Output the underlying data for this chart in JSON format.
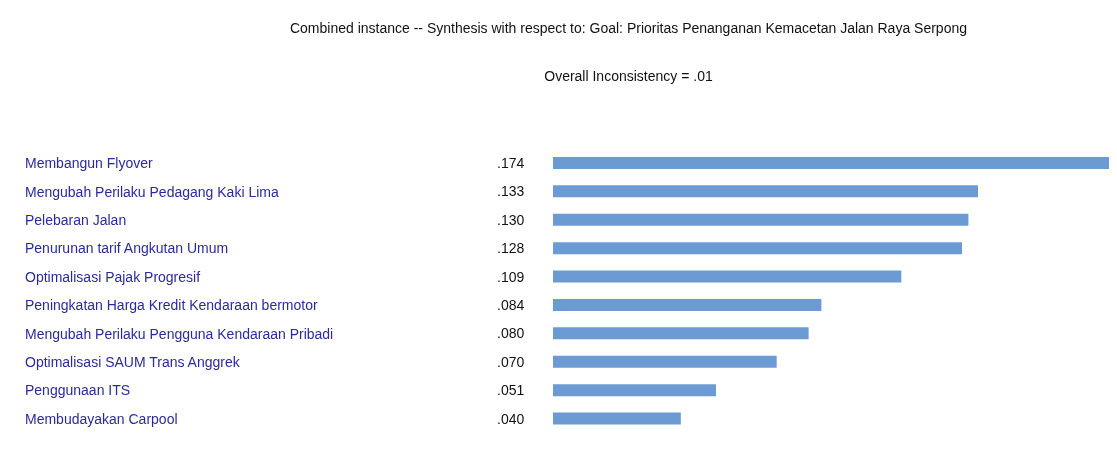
{
  "chart_data": {
    "type": "bar",
    "orientation": "horizontal",
    "title": "Combined instance -- Synthesis with respect to: Goal: Prioritas Penanganan Kemacetan Jalan Raya Serpong",
    "subtitle": "Overall Inconsistency = .01",
    "categories": [
      "Membangun Flyover",
      "Mengubah Perilaku Pedagang Kaki Lima",
      "Pelebaran Jalan",
      "Penurunan tarif Angkutan Umum",
      "Optimalisasi Pajak Progresif",
      "Peningkatan Harga Kredit Kendaraan bermotor",
      "Mengubah Perilaku Pengguna Kendaraan Pribadi",
      "Optimalisasi SAUM Trans Anggrek",
      "Penggunaan ITS",
      "Membudayakan Carpool"
    ],
    "values": [
      0.174,
      0.133,
      0.13,
      0.128,
      0.109,
      0.084,
      0.08,
      0.07,
      0.051,
      0.04
    ],
    "value_labels": [
      ".174",
      ".133",
      ".130",
      ".128",
      ".109",
      ".084",
      ".080",
      ".070",
      ".051",
      ".040"
    ],
    "color": "#6b9bd2"
  }
}
